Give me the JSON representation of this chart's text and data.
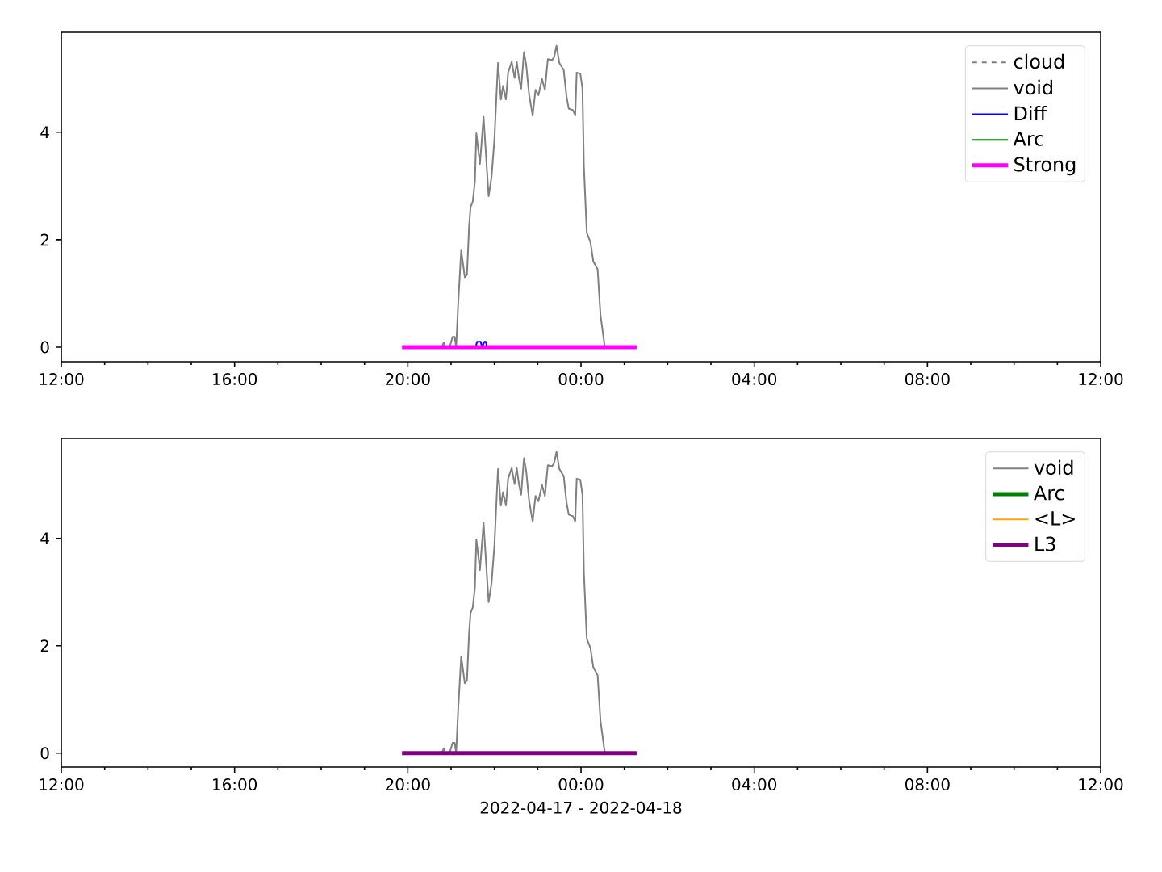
{
  "chart_data": [
    {
      "type": "line",
      "legend": "top right",
      "xlim": [
        "2022-04-17T12:00",
        "2022-04-18T12:00"
      ],
      "ylim": [
        -0.27,
        5.86
      ],
      "yticks": [
        0,
        2,
        4
      ],
      "xticks": [
        {
          "value": "2022-04-17T12:00",
          "label": "12:00"
        },
        {
          "value": "2022-04-17T13:00",
          "label": null
        },
        {
          "value": "2022-04-17T14:00",
          "label": null
        },
        {
          "value": "2022-04-17T15:00",
          "label": null
        },
        {
          "value": "2022-04-17T16:00",
          "label": "16:00"
        },
        {
          "value": "2022-04-17T17:00",
          "label": null
        },
        {
          "value": "2022-04-17T18:00",
          "label": null
        },
        {
          "value": "2022-04-17T19:00",
          "label": null
        },
        {
          "value": "2022-04-17T20:00",
          "label": "20:00"
        },
        {
          "value": "2022-04-17T21:00",
          "label": null
        },
        {
          "value": "2022-04-17T22:00",
          "label": null
        },
        {
          "value": "2022-04-17T23:00",
          "label": null
        },
        {
          "value": "2022-04-18T00:00",
          "label": "00:00"
        },
        {
          "value": "2022-04-18T01:00",
          "label": null
        },
        {
          "value": "2022-04-18T02:00",
          "label": null
        },
        {
          "value": "2022-04-18T03:00",
          "label": null
        },
        {
          "value": "2022-04-18T04:00",
          "label": "04:00"
        },
        {
          "value": "2022-04-18T05:00",
          "label": null
        },
        {
          "value": "2022-04-18T06:00",
          "label": null
        },
        {
          "value": "2022-04-18T07:00",
          "label": null
        },
        {
          "value": "2022-04-18T08:00",
          "label": "08:00"
        },
        {
          "value": "2022-04-18T09:00",
          "label": null
        },
        {
          "value": "2022-04-18T10:00",
          "label": null
        },
        {
          "value": "2022-04-18T11:00",
          "label": null
        },
        {
          "value": "2022-04-18T12:00",
          "label": "12:00"
        }
      ],
      "series": [
        {
          "name": "cloud",
          "color": "#808080",
          "line_style": "dashed"
        },
        {
          "name": "void",
          "color": "#808080",
          "x": [
            "2022-04-17T20:47",
            "2022-04-17T20:50",
            "2022-04-17T20:52",
            "2022-04-17T20:58",
            "2022-04-17T21:02",
            "2022-04-17T21:05",
            "2022-04-17T21:07",
            "2022-04-17T21:10",
            "2022-04-17T21:14",
            "2022-04-17T21:19",
            "2022-04-17T21:22",
            "2022-04-17T21:25",
            "2022-04-17T21:27",
            "2022-04-17T21:30",
            "2022-04-17T21:33",
            "2022-04-17T21:35",
            "2022-04-17T21:40",
            "2022-04-17T21:45",
            "2022-04-17T21:52",
            "2022-04-17T21:56",
            "2022-04-17T22:00",
            "2022-04-17T22:04",
            "2022-04-17T22:05",
            "2022-04-17T22:09",
            "2022-04-17T22:12",
            "2022-04-17T22:16",
            "2022-04-17T22:19",
            "2022-04-17T22:24",
            "2022-04-17T22:28",
            "2022-04-17T22:31",
            "2022-04-17T22:34",
            "2022-04-17T22:37",
            "2022-04-17T22:41",
            "2022-04-17T22:44",
            "2022-04-17T22:48",
            "2022-04-17T22:53",
            "2022-04-17T22:57",
            "2022-04-17T23:01",
            "2022-04-17T23:06",
            "2022-04-17T23:10",
            "2022-04-17T23:14",
            "2022-04-17T23:20",
            "2022-04-17T23:23",
            "2022-04-17T23:26",
            "2022-04-17T23:30",
            "2022-04-17T23:36",
            "2022-04-17T23:40",
            "2022-04-17T23:43",
            "2022-04-17T23:49",
            "2022-04-17T23:52",
            "2022-04-17T23:54",
            "2022-04-17T23:59",
            "2022-04-18T00:02",
            "2022-04-18T00:04",
            "2022-04-18T00:08",
            "2022-04-18T00:13",
            "2022-04-18T00:17",
            "2022-04-18T00:23",
            "2022-04-18T00:27",
            "2022-04-18T00:33"
          ],
          "values": [
            0,
            0.09,
            0,
            0,
            0.19,
            0.19,
            0,
            0.85,
            1.8,
            1.3,
            1.35,
            2.26,
            2.61,
            2.71,
            3.08,
            3.98,
            3.41,
            4.29,
            2.81,
            3.16,
            3.86,
            5.01,
            5.29,
            4.61,
            4.86,
            4.61,
            5.11,
            5.31,
            5.01,
            5.31,
            5.01,
            4.81,
            5.49,
            5.26,
            4.71,
            4.31,
            4.79,
            4.69,
            4.99,
            4.79,
            5.36,
            5.34,
            5.41,
            5.61,
            5.29,
            5.16,
            4.66,
            4.44,
            4.41,
            4.31,
            5.11,
            5.09,
            4.81,
            3.36,
            2.13,
            1.96,
            1.6,
            1.45,
            0.6,
            0
          ]
        },
        {
          "name": "Diff",
          "color": "#0000ff",
          "x": [
            "2022-04-17T21:34",
            "2022-04-17T21:36",
            "2022-04-17T21:41",
            "2022-04-17T21:43",
            "2022-04-17T21:46",
            "2022-04-17T21:48",
            "2022-04-17T21:50"
          ],
          "values": [
            0,
            0.1,
            0.1,
            0,
            0.1,
            0.1,
            0
          ]
        },
        {
          "name": "Arc",
          "color": "#008000"
        },
        {
          "name": "Strong",
          "color": "#ff00ff",
          "x": [
            "2022-04-17T19:52",
            "2022-04-18T01:17"
          ],
          "values": [
            0,
            0
          ]
        }
      ]
    },
    {
      "type": "line",
      "legend": "top right",
      "xlim": [
        "2022-04-17T12:00",
        "2022-04-18T12:00"
      ],
      "ylim": [
        -0.26,
        5.86
      ],
      "yticks": [
        0,
        2,
        4
      ],
      "xlabel": "2022-04-17 - 2022-04-18",
      "xticks": [
        {
          "value": "2022-04-17T12:00",
          "label": "12:00"
        },
        {
          "value": "2022-04-17T13:00",
          "label": null
        },
        {
          "value": "2022-04-17T14:00",
          "label": null
        },
        {
          "value": "2022-04-17T15:00",
          "label": null
        },
        {
          "value": "2022-04-17T16:00",
          "label": "16:00"
        },
        {
          "value": "2022-04-17T17:00",
          "label": null
        },
        {
          "value": "2022-04-17T18:00",
          "label": null
        },
        {
          "value": "2022-04-17T19:00",
          "label": null
        },
        {
          "value": "2022-04-17T20:00",
          "label": "20:00"
        },
        {
          "value": "2022-04-17T21:00",
          "label": null
        },
        {
          "value": "2022-04-17T22:00",
          "label": null
        },
        {
          "value": "2022-04-17T23:00",
          "label": null
        },
        {
          "value": "2022-04-18T00:00",
          "label": "00:00"
        },
        {
          "value": "2022-04-18T01:00",
          "label": null
        },
        {
          "value": "2022-04-18T02:00",
          "label": null
        },
        {
          "value": "2022-04-18T03:00",
          "label": null
        },
        {
          "value": "2022-04-18T04:00",
          "label": "04:00"
        },
        {
          "value": "2022-04-18T05:00",
          "label": null
        },
        {
          "value": "2022-04-18T06:00",
          "label": null
        },
        {
          "value": "2022-04-18T07:00",
          "label": null
        },
        {
          "value": "2022-04-18T08:00",
          "label": "08:00"
        },
        {
          "value": "2022-04-18T09:00",
          "label": null
        },
        {
          "value": "2022-04-18T10:00",
          "label": null
        },
        {
          "value": "2022-04-18T11:00",
          "label": null
        },
        {
          "value": "2022-04-18T12:00",
          "label": "12:00"
        }
      ],
      "series": [
        {
          "name": "void",
          "color": "#808080",
          "x": [
            "2022-04-17T20:47",
            "2022-04-17T20:50",
            "2022-04-17T20:52",
            "2022-04-17T20:58",
            "2022-04-17T21:02",
            "2022-04-17T21:05",
            "2022-04-17T21:07",
            "2022-04-17T21:10",
            "2022-04-17T21:14",
            "2022-04-17T21:19",
            "2022-04-17T21:22",
            "2022-04-17T21:25",
            "2022-04-17T21:27",
            "2022-04-17T21:30",
            "2022-04-17T21:33",
            "2022-04-17T21:35",
            "2022-04-17T21:40",
            "2022-04-17T21:45",
            "2022-04-17T21:52",
            "2022-04-17T21:56",
            "2022-04-17T22:00",
            "2022-04-17T22:04",
            "2022-04-17T22:05",
            "2022-04-17T22:09",
            "2022-04-17T22:12",
            "2022-04-17T22:16",
            "2022-04-17T22:19",
            "2022-04-17T22:24",
            "2022-04-17T22:28",
            "2022-04-17T22:31",
            "2022-04-17T22:34",
            "2022-04-17T22:37",
            "2022-04-17T22:41",
            "2022-04-17T22:44",
            "2022-04-17T22:48",
            "2022-04-17T22:53",
            "2022-04-17T22:57",
            "2022-04-17T23:01",
            "2022-04-17T23:06",
            "2022-04-17T23:10",
            "2022-04-17T23:14",
            "2022-04-17T23:20",
            "2022-04-17T23:23",
            "2022-04-17T23:26",
            "2022-04-17T23:30",
            "2022-04-17T23:36",
            "2022-04-17T23:40",
            "2022-04-17T23:43",
            "2022-04-17T23:49",
            "2022-04-17T23:52",
            "2022-04-17T23:54",
            "2022-04-17T23:59",
            "2022-04-18T00:02",
            "2022-04-18T00:04",
            "2022-04-18T00:08",
            "2022-04-18T00:13",
            "2022-04-18T00:17",
            "2022-04-18T00:23",
            "2022-04-18T00:27",
            "2022-04-18T00:33"
          ],
          "values": [
            0,
            0.09,
            0,
            0,
            0.19,
            0.19,
            0,
            0.85,
            1.8,
            1.3,
            1.35,
            2.26,
            2.61,
            2.71,
            3.08,
            3.98,
            3.41,
            4.29,
            2.81,
            3.16,
            3.86,
            5.01,
            5.29,
            4.61,
            4.86,
            4.61,
            5.11,
            5.31,
            5.01,
            5.31,
            5.01,
            4.81,
            5.49,
            5.26,
            4.71,
            4.31,
            4.79,
            4.69,
            4.99,
            4.79,
            5.36,
            5.34,
            5.41,
            5.61,
            5.29,
            5.16,
            4.66,
            4.44,
            4.41,
            4.31,
            5.11,
            5.09,
            4.81,
            3.36,
            2.13,
            1.96,
            1.6,
            1.45,
            0.6,
            0
          ]
        },
        {
          "name": "Arc",
          "color": "#008000"
        },
        {
          "name": "<L>",
          "color": "#ffa500"
        },
        {
          "name": "L3",
          "color": "#800080",
          "x": [
            "2022-04-17T19:52",
            "2022-04-18T01:17"
          ],
          "values": [
            0,
            0
          ]
        }
      ]
    }
  ]
}
